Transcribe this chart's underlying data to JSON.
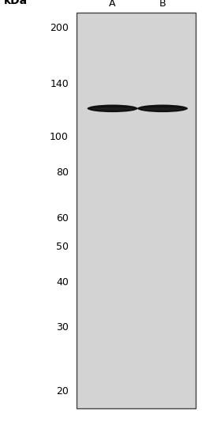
{
  "kda_labels": [
    200,
    140,
    100,
    80,
    60,
    50,
    40,
    30,
    20
  ],
  "lane_labels": [
    "A",
    "B"
  ],
  "blot_bg_color": "#d3d3d3",
  "blot_border_color": "#444444",
  "band_color": "#111111",
  "fig_bg": "#ffffff",
  "kda_header": "kDa",
  "tick_fontsize": 9,
  "lane_fontsize": 9,
  "header_fontsize": 10
}
